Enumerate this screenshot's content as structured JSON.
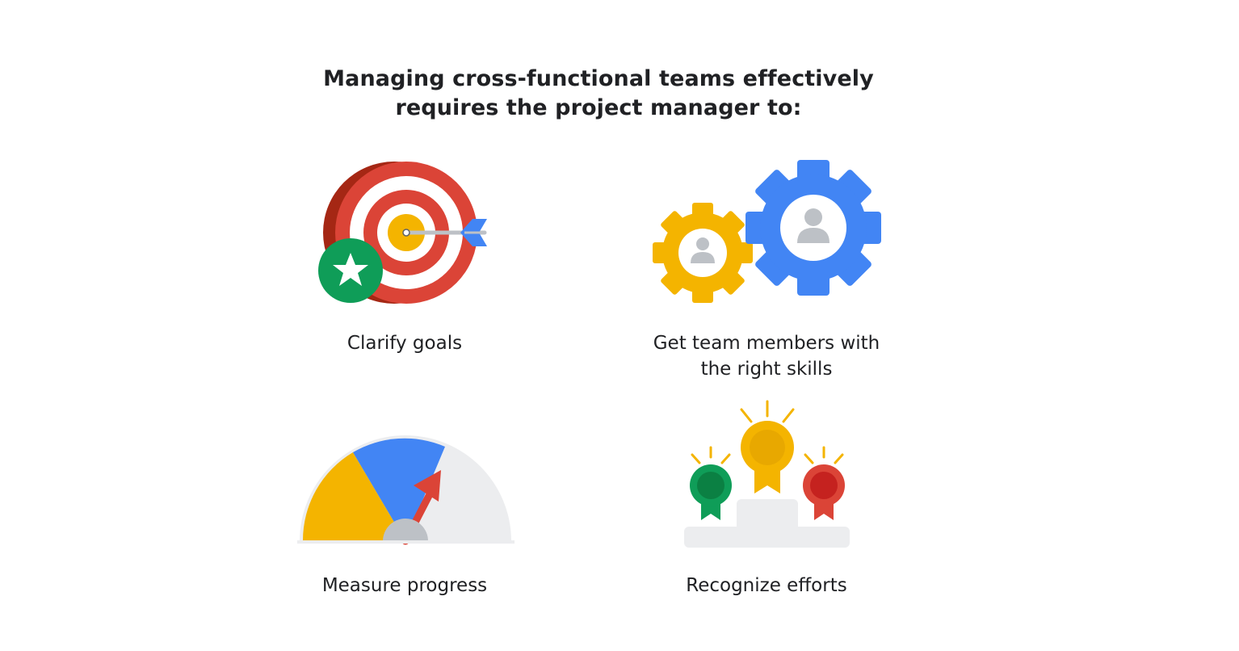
{
  "title": {
    "line1": "Managing cross-functional teams effectively",
    "line2": "requires the project manager to:"
  },
  "items": [
    {
      "label_lines": [
        "Clarify goals"
      ],
      "icon": "target-with-star-icon"
    },
    {
      "label_lines": [
        "Get team members with",
        "the right skills"
      ],
      "icon": "gears-with-people-icon"
    },
    {
      "label_lines": [
        "Measure progress"
      ],
      "icon": "gauge-meter-icon"
    },
    {
      "label_lines": [
        "Recognize efforts"
      ],
      "icon": "award-medals-icon"
    }
  ],
  "colors": {
    "red": "#DB4437",
    "dark_red": "#A52714",
    "yellow": "#F4B400",
    "blue": "#4285F4",
    "green": "#0F9D58",
    "light_gray": "#ECEDEF",
    "text": "#202124"
  }
}
